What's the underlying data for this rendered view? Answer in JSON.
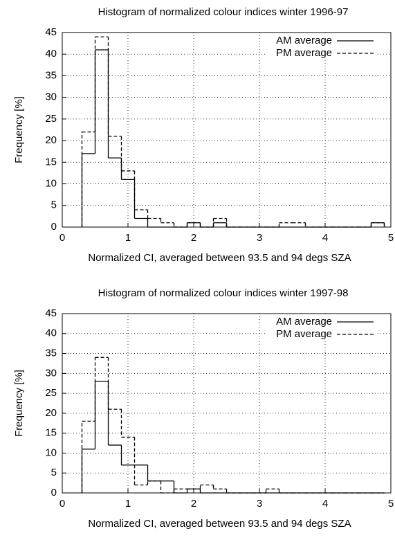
{
  "chart_data": [
    {
      "type": "histogram",
      "title": "Histogram of normalized colour indices winter 1996-97",
      "xlabel": "Normalized CI, averaged between 93.5 and 94 degs SZA",
      "ylabel": "Frequency [%]",
      "bins": [
        0.3,
        0.5,
        0.7,
        0.9,
        1.1,
        1.3,
        1.5,
        1.7,
        1.9,
        2.1,
        2.3,
        2.5,
        2.7,
        2.9,
        3.1,
        3.3,
        3.5,
        3.7,
        3.9,
        4.1,
        4.3,
        4.5,
        4.7,
        4.9
      ],
      "series": [
        {
          "name": "AM average",
          "color": "#000000",
          "dash": "solid",
          "values": [
            17,
            41,
            16,
            11,
            2,
            0,
            0,
            0,
            1,
            0,
            1,
            0,
            0,
            0,
            0,
            0,
            0,
            0,
            0,
            0,
            0,
            0,
            1
          ]
        },
        {
          "name": "PM average",
          "color": "#000000",
          "dash": "dashed",
          "values": [
            22,
            44,
            21,
            13,
            4,
            2,
            1,
            0,
            1,
            0,
            2,
            0,
            0,
            0,
            0,
            1,
            1,
            0,
            0,
            0,
            0,
            0,
            1
          ]
        }
      ],
      "xlim": [
        0,
        5
      ],
      "ylim": [
        0,
        45
      ],
      "xticks": [
        0,
        1,
        2,
        3,
        4,
        5
      ],
      "yticks": [
        0,
        5,
        10,
        15,
        20,
        25,
        30,
        35,
        40,
        45
      ],
      "grid": true,
      "legend": "upper right"
    },
    {
      "type": "histogram",
      "title": "Histogram of normalized colour indices winter 1997-98",
      "xlabel": "Normalized CI, averaged between 93.5 and 94 degs SZA",
      "ylabel": "Frequency [%]",
      "bins": [
        0.3,
        0.5,
        0.7,
        0.9,
        1.1,
        1.3,
        1.5,
        1.7,
        1.9,
        2.1,
        2.3,
        2.5,
        2.7,
        2.9,
        3.1,
        3.3,
        3.5,
        3.7,
        3.9,
        4.1,
        4.3,
        4.5,
        4.7,
        4.9
      ],
      "series": [
        {
          "name": "AM average",
          "color": "#000000",
          "dash": "solid",
          "values": [
            11,
            28,
            12,
            7,
            7,
            3,
            3,
            0,
            1,
            0,
            0,
            0,
            0,
            0,
            0,
            0,
            0,
            0,
            0,
            0,
            0,
            0,
            0
          ]
        },
        {
          "name": "PM average",
          "color": "#000000",
          "dash": "dashed",
          "values": [
            18,
            34,
            21,
            14,
            2,
            3,
            0,
            1,
            1,
            2,
            1,
            0,
            0,
            0,
            1,
            0,
            0,
            0,
            0,
            0,
            0,
            0,
            0
          ]
        }
      ],
      "xlim": [
        0,
        5
      ],
      "ylim": [
        0,
        45
      ],
      "xticks": [
        0,
        1,
        2,
        3,
        4,
        5
      ],
      "yticks": [
        0,
        5,
        10,
        15,
        20,
        25,
        30,
        35,
        40,
        45
      ],
      "grid": true,
      "legend": "upper right"
    }
  ]
}
